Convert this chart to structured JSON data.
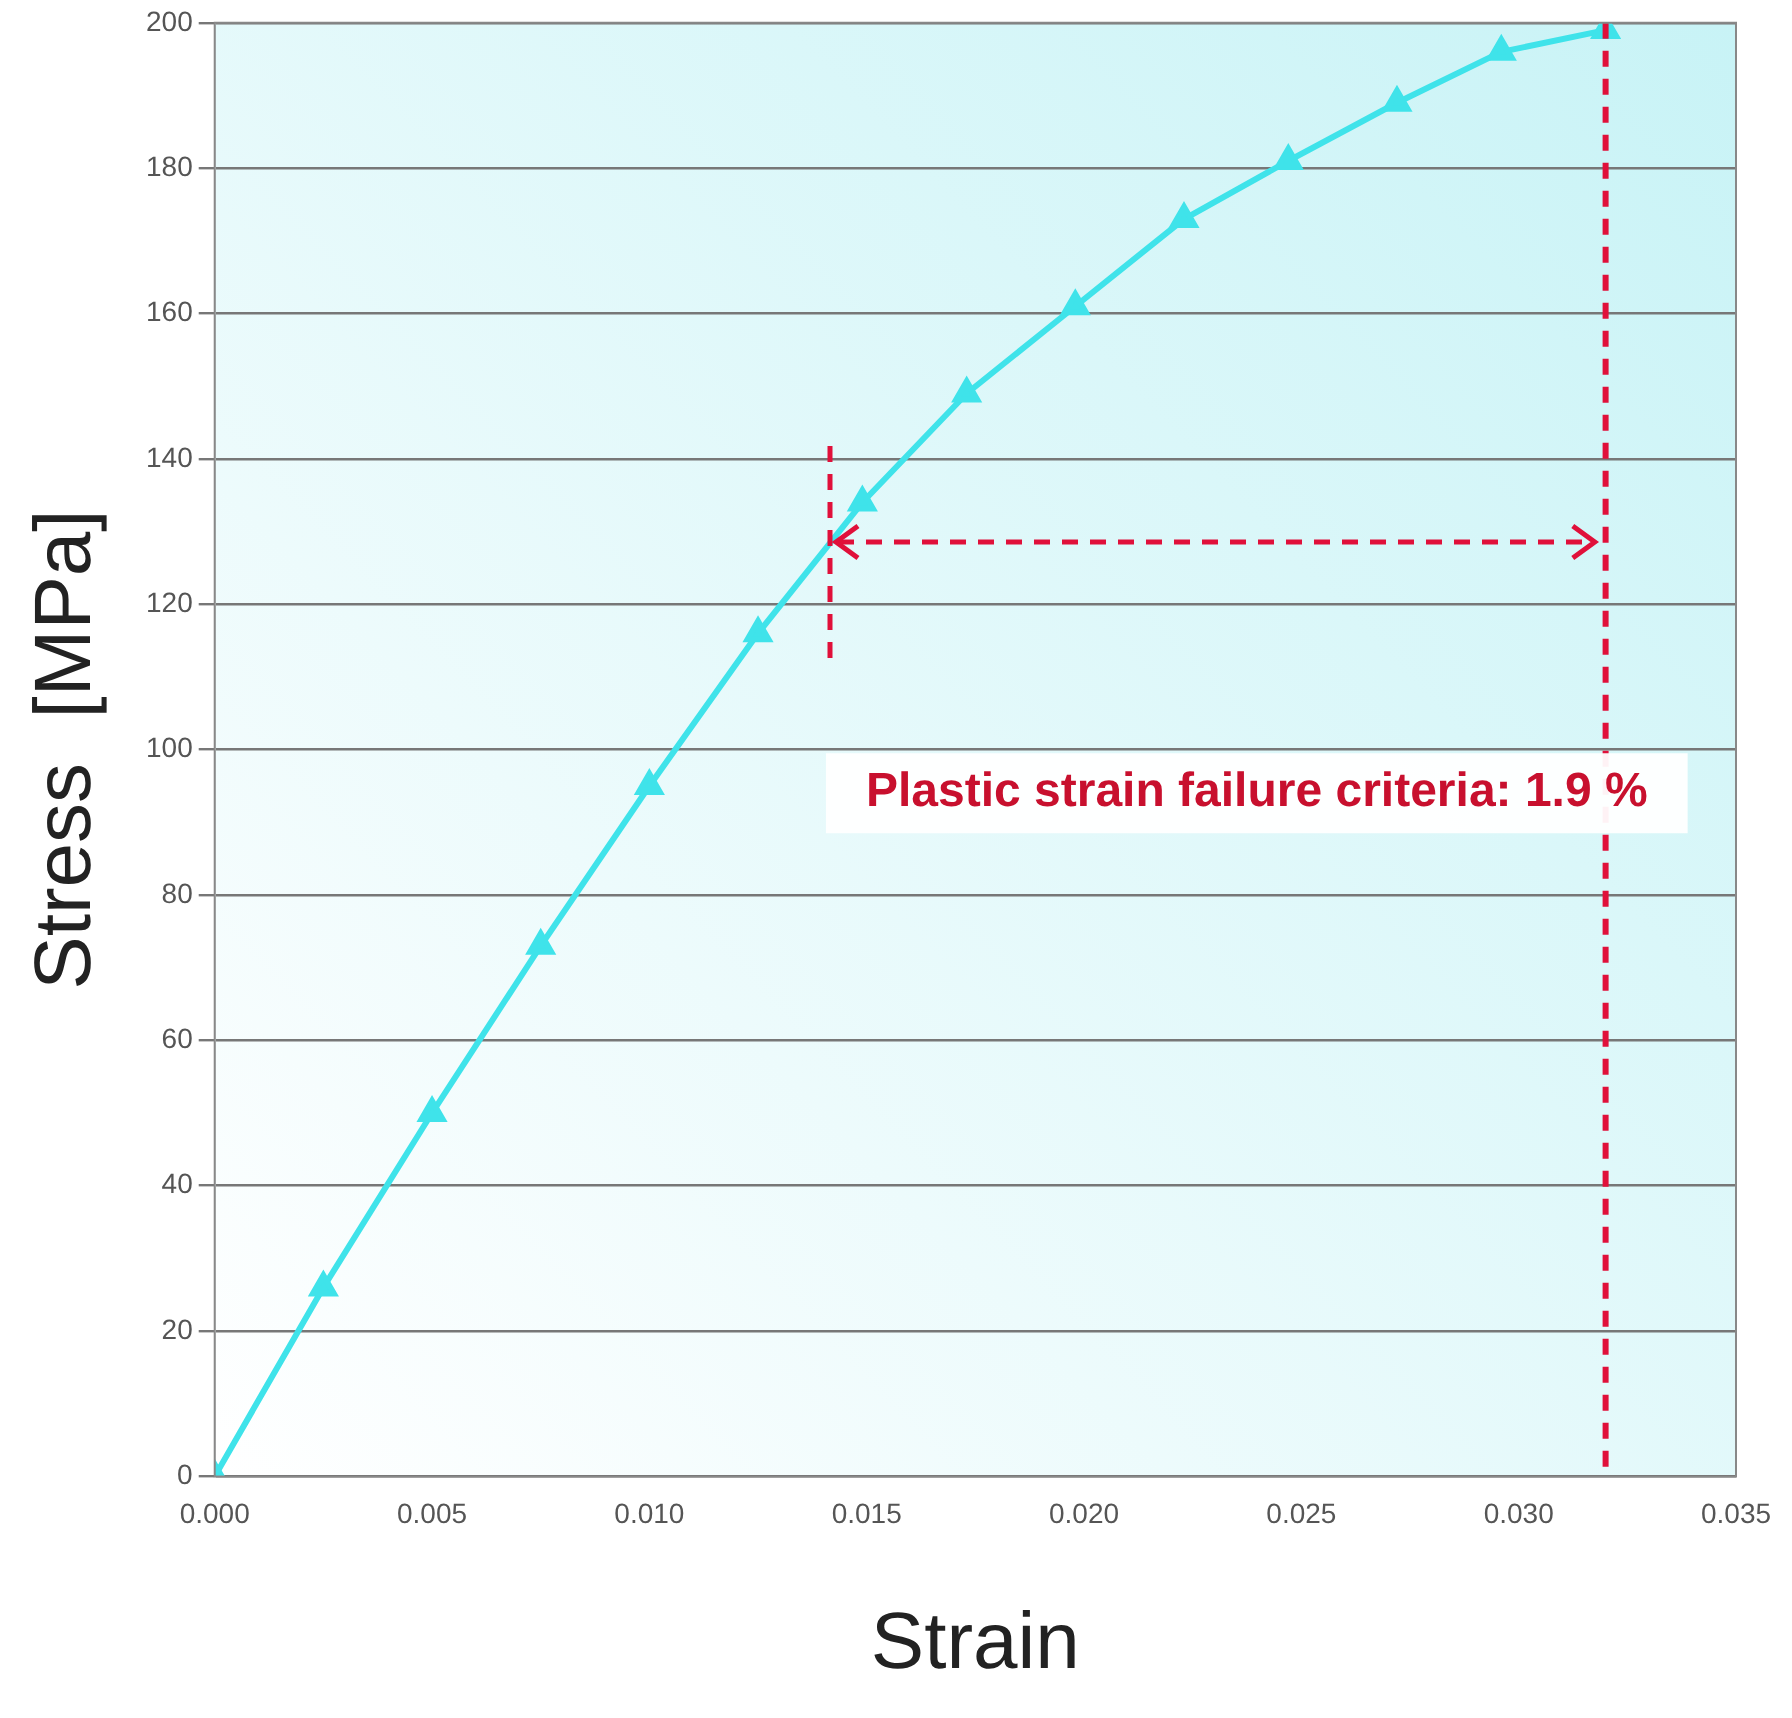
{
  "chart_data": {
    "type": "line",
    "xlabel": "Strain",
    "ylabel": "Stress  [MPa]",
    "x": [
      0,
      0.0025,
      0.005,
      0.0075,
      0.01,
      0.0125,
      0.0149,
      0.0173,
      0.0198,
      0.0223,
      0.0247,
      0.0272,
      0.0296,
      0.032
    ],
    "series": [
      {
        "color": "#3fe3ea",
        "values": [
          0,
          26,
          50,
          73,
          95,
          116,
          134,
          149,
          161,
          173,
          181,
          189,
          196,
          199
        ]
      }
    ],
    "xlim": [
      0,
      0.035
    ],
    "xticks": [
      {
        "value": 0,
        "label": "0.000"
      },
      {
        "value": 0.005,
        "label": "0.005"
      },
      {
        "value": 0.01,
        "label": "0.010"
      },
      {
        "value": 0.015,
        "label": "0.015"
      },
      {
        "value": 0.02,
        "label": "0.020"
      },
      {
        "value": 0.025,
        "label": "0.025"
      },
      {
        "value": 0.03,
        "label": "0.030"
      },
      {
        "value": 0.035,
        "label": "0.035"
      }
    ],
    "ylim": [
      0,
      200
    ],
    "yticks": [
      0,
      20,
      40,
      60,
      80,
      100,
      120,
      140,
      160,
      180,
      200
    ],
    "grid": "y",
    "legend": false,
    "marker": "triangle",
    "line_style": "solid",
    "ref_lines": [
      {
        "axis": "x",
        "value": 0.032,
        "color": "#e0103a",
        "line_style": "dashed"
      }
    ],
    "annotations": [
      "Plastic strain failure criteria: 1.9 %"
    ]
  }
}
